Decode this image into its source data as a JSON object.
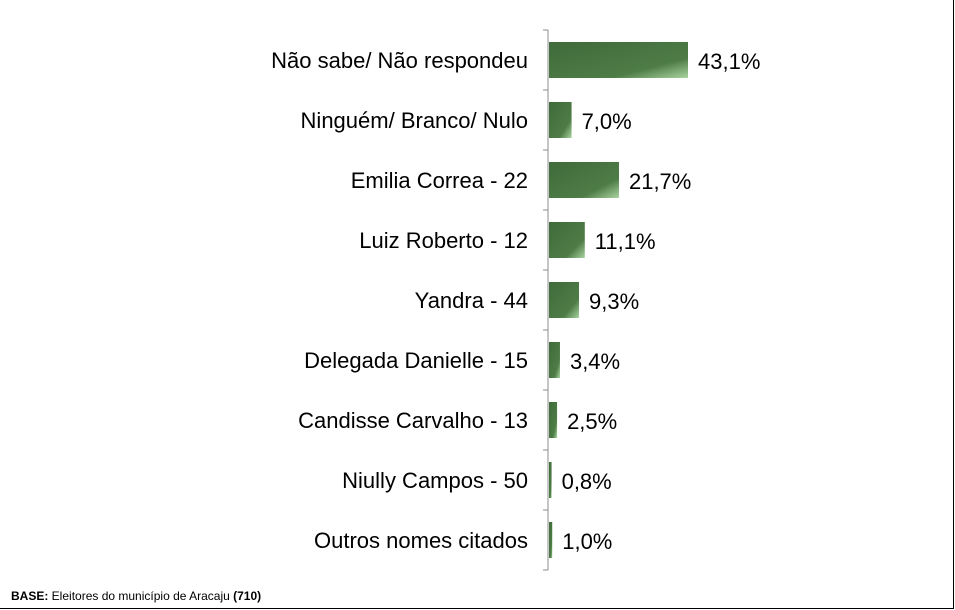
{
  "chart_data": {
    "type": "bar",
    "orientation": "horizontal",
    "categories": [
      "Não sabe/ Não respondeu",
      "Ninguém/ Branco/ Nulo",
      "Emilia Correa - 22",
      "Luiz Roberto - 12",
      "Yandra - 44",
      "Delegada Danielle - 15",
      "Candisse Carvalho - 13",
      "Niully Campos - 50",
      "Outros nomes citados"
    ],
    "values": [
      43.1,
      7.0,
      21.7,
      11.1,
      9.3,
      3.4,
      2.5,
      0.8,
      1.0
    ],
    "value_labels": [
      "43,1%",
      "7,0%",
      "21,7%",
      "11,1%",
      "9,3%",
      "3,4%",
      "2,5%",
      "0,8%",
      "1,0%"
    ],
    "xlim": [
      0,
      100
    ],
    "grid": false,
    "legend": "none",
    "bar_color_dark": "#3f6a3a",
    "bar_color_light": "#a9d4a0"
  },
  "footnote": {
    "base_label": "BASE:",
    "base_text": " Eleitores do município de Aracaju ",
    "base_count": "(710)"
  }
}
